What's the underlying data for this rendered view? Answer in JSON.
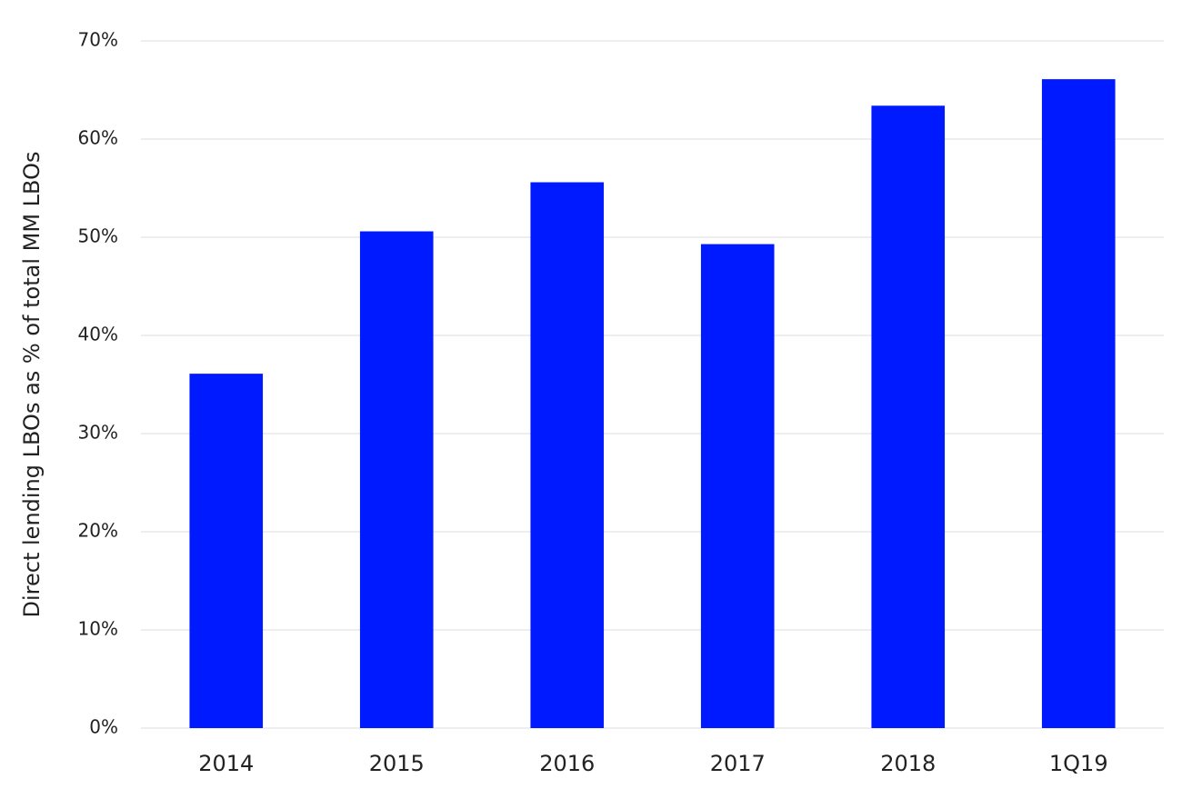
{
  "chart_data": {
    "type": "bar",
    "y_label": "Direct lending LBOs as % of total MM LBOs",
    "categories": [
      "2014",
      "2015",
      "2016",
      "2017",
      "2018",
      "1Q19"
    ],
    "values": [
      36.1,
      50.6,
      55.6,
      49.3,
      63.4,
      66.1
    ],
    "color": "#001aff",
    "ylim": [
      0,
      70
    ],
    "yticks": [
      {
        "value": 0,
        "label": "0%"
      },
      {
        "value": 10,
        "label": "10%"
      },
      {
        "value": 20,
        "label": "20%"
      },
      {
        "value": 30,
        "label": "30%"
      },
      {
        "value": 40,
        "label": "40%"
      },
      {
        "value": 50,
        "label": "50%"
      },
      {
        "value": 60,
        "label": "60%"
      },
      {
        "value": 70,
        "label": "70%"
      }
    ],
    "grid": true
  }
}
